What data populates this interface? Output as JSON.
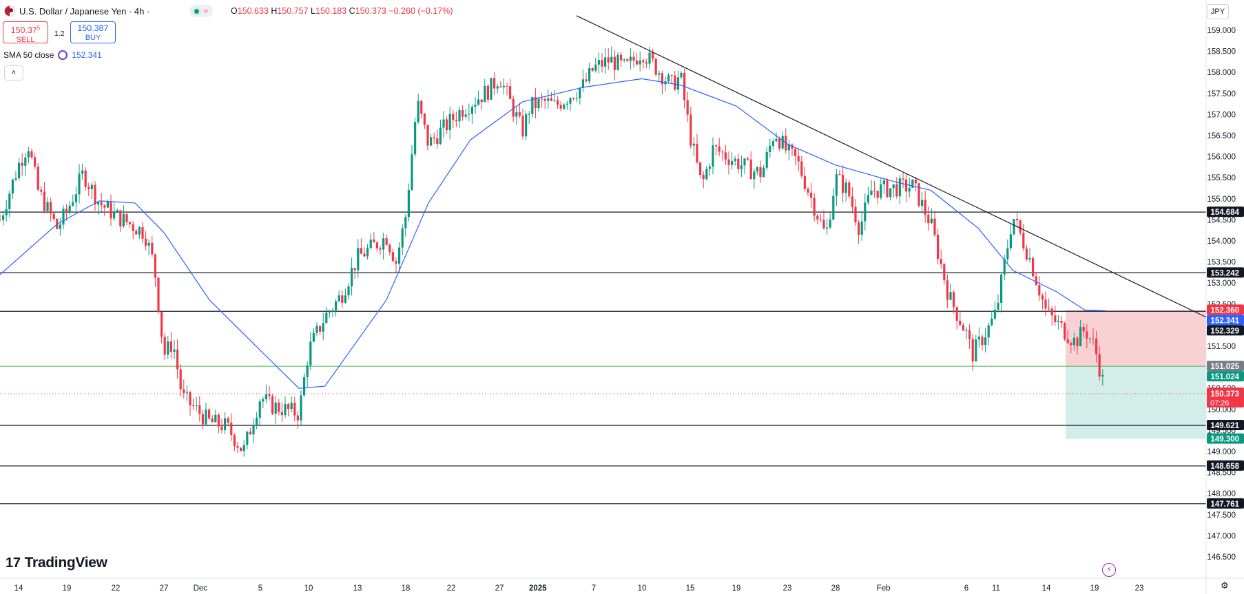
{
  "header": {
    "symbol_title": "U.S. Dollar / Japanese Yen · 4h ·",
    "market_status_icon": "green-dot-icon",
    "wave_icon": "≈",
    "ohlc": {
      "o_label": "O",
      "o": "150.633",
      "h_label": "H",
      "h": "150.757",
      "l_label": "L",
      "l": "150.183",
      "c_label": "C",
      "c": "150.373",
      "change": "−0.260 (−0.17%)"
    }
  },
  "trade": {
    "sell_price": "150.37",
    "sell_price_sup": "5",
    "sell_label": "SELL",
    "spread": "1.2",
    "buy_price": "150.387",
    "buy_label": "BUY"
  },
  "indicator": {
    "label": "SMA 50 close",
    "value": "152.341"
  },
  "collapse_icon": "˄",
  "branding": {
    "logo_text": "TradingView",
    "logo_mark": "17"
  },
  "axis": {
    "currency": "JPY",
    "price_ticks": [
      "159.000",
      "158.500",
      "158.000",
      "157.500",
      "157.000",
      "156.500",
      "156.000",
      "155.500",
      "155.000",
      "154.500",
      "154.000",
      "153.500",
      "153.000",
      "152.500",
      "152.000",
      "151.500",
      "151.000",
      "150.500",
      "150.000",
      "149.500",
      "149.000",
      "148.500",
      "148.000",
      "147.500",
      "147.000",
      "146.500"
    ],
    "time_ticks": [
      "14",
      "19",
      "22",
      "27",
      "Dec",
      "5",
      "10",
      "13",
      "18",
      "22",
      "27",
      "2025",
      "7",
      "10",
      "15",
      "19",
      "23",
      "28",
      "Feb",
      "6",
      "11",
      "14",
      "19",
      "23"
    ]
  },
  "labels": {
    "l154684": "154.684",
    "l153242": "153.242",
    "l152360": "152.360",
    "l152341": "152.341",
    "l152329": "152.329",
    "l151025": "151.025",
    "l151024": "151.024",
    "l150373": "150.373",
    "countdown": "07:26",
    "l149621": "149.621",
    "l149300": "149.300",
    "l148658": "148.658",
    "l147761": "147.761"
  },
  "colors": {
    "up": "#089981",
    "down": "#f23645",
    "sma": "#2962ff",
    "stop_zone": "#f7c9ce",
    "target_zone": "#cbeae4",
    "entry_line": "#4caf50"
  },
  "chart_data": {
    "type": "candlestick",
    "title": "U.S. Dollar / Japanese Yen · 4h ·",
    "xlabel": "",
    "ylabel": "JPY",
    "ylim": [
      146.2,
      159.3
    ],
    "horizontal_levels": [
      154.684,
      153.242,
      152.329,
      151.024,
      149.621,
      148.658,
      147.761
    ],
    "price_labels": [
      152.36,
      152.341,
      151.025,
      150.373,
      149.3
    ],
    "last_price": 150.373,
    "trendline": {
      "from": {
        "date": "Jan 7",
        "price": 159.15
      },
      "to": {
        "date": "Feb 23",
        "price": 152.95
      }
    },
    "sma50_path": [
      {
        "date": "Nov 13",
        "value": 153.2
      },
      {
        "date": "Nov 18",
        "value": 154.4
      },
      {
        "date": "Nov 21",
        "value": 154.95
      },
      {
        "date": "Nov 24",
        "value": 154.9
      },
      {
        "date": "Nov 27",
        "value": 154.2
      },
      {
        "date": "Dec 2",
        "value": 152.6
      },
      {
        "date": "Dec 5",
        "value": 151.4
      },
      {
        "date": "Dec 9",
        "value": 150.5
      },
      {
        "date": "Dec 11",
        "value": 150.55
      },
      {
        "date": "Dec 16",
        "value": 152.6
      },
      {
        "date": "Dec 20",
        "value": 154.9
      },
      {
        "date": "Dec 24",
        "value": 156.4
      },
      {
        "date": "Dec 30",
        "value": 157.3
      },
      {
        "date": "Jan 6",
        "value": 157.65
      },
      {
        "date": "Jan 10",
        "value": 157.85
      },
      {
        "date": "Jan 14",
        "value": 157.7
      },
      {
        "date": "Jan 19",
        "value": 157.2
      },
      {
        "date": "Jan 23",
        "value": 156.3
      },
      {
        "date": "Jan 28",
        "value": 155.8
      },
      {
        "date": "Feb 2",
        "value": 155.4
      },
      {
        "date": "Feb 4",
        "value": 155.2
      },
      {
        "date": "Feb 8",
        "value": 154.3
      },
      {
        "date": "Feb 12",
        "value": 153.3
      },
      {
        "date": "Feb 15",
        "value": 152.8
      },
      {
        "date": "Feb 18",
        "value": 152.36
      },
      {
        "date": "Feb 20",
        "value": 152.341
      }
    ],
    "price_path": [
      {
        "date": "Nov 13",
        "close": 154.5
      },
      {
        "date": "Nov 14",
        "close": 155.8
      },
      {
        "date": "Nov 15",
        "close": 156.3
      },
      {
        "date": "Nov 16",
        "close": 155.2
      },
      {
        "date": "Nov 18",
        "close": 154.3
      },
      {
        "date": "Nov 19",
        "close": 154.7
      },
      {
        "date": "Nov 20",
        "close": 155.6
      },
      {
        "date": "Nov 21",
        "close": 154.9
      },
      {
        "date": "Nov 22",
        "close": 154.6
      },
      {
        "date": "Nov 25",
        "close": 154.2
      },
      {
        "date": "Nov 26",
        "close": 153.4
      },
      {
        "date": "Nov 27",
        "close": 151.3
      },
      {
        "date": "Nov 28",
        "close": 151.6
      },
      {
        "date": "Nov 29",
        "close": 150.3
      },
      {
        "date": "Dec 2",
        "close": 149.7
      },
      {
        "date": "Dec 3",
        "close": 149.6
      },
      {
        "date": "Dec 4",
        "close": 149.0
      },
      {
        "date": "Dec 5",
        "close": 150.3
      },
      {
        "date": "Dec 6",
        "close": 150.1
      },
      {
        "date": "Dec 9",
        "close": 149.9
      },
      {
        "date": "Dec 10",
        "close": 151.4
      },
      {
        "date": "Dec 11",
        "close": 152.2
      },
      {
        "date": "Dec 12",
        "close": 152.7
      },
      {
        "date": "Dec 13",
        "close": 153.6
      },
      {
        "date": "Dec 16",
        "close": 154.1
      },
      {
        "date": "Dec 17",
        "close": 153.5
      },
      {
        "date": "Dec 18",
        "close": 154.6
      },
      {
        "date": "Dec 19",
        "close": 157.3
      },
      {
        "date": "Dec 20",
        "close": 156.3
      },
      {
        "date": "Dec 23",
        "close": 157.1
      },
      {
        "date": "Dec 26",
        "close": 157.6
      },
      {
        "date": "Dec 27",
        "close": 157.9
      },
      {
        "date": "Dec 30",
        "close": 156.6
      },
      {
        "date": "Dec 31",
        "close": 157.2
      },
      {
        "date": "Jan 2",
        "close": 157.3
      },
      {
        "date": "Jan 3",
        "close": 157.2
      },
      {
        "date": "Jan 6",
        "close": 157.7
      },
      {
        "date": "Jan 7",
        "close": 158.1
      },
      {
        "date": "Jan 8",
        "close": 158.3
      },
      {
        "date": "Jan 9",
        "close": 158.1
      },
      {
        "date": "Jan 10",
        "close": 158.5
      },
      {
        "date": "Jan 13",
        "close": 157.7
      },
      {
        "date": "Jan 14",
        "close": 157.9
      },
      {
        "date": "Jan 15",
        "close": 156.5
      },
      {
        "date": "Jan 16",
        "close": 155.3
      },
      {
        "date": "Jan 17",
        "close": 156.2
      },
      {
        "date": "Jan 20",
        "close": 155.7
      },
      {
        "date": "Jan 21",
        "close": 155.6
      },
      {
        "date": "Jan 22",
        "close": 156.6
      },
      {
        "date": "Jan 23",
        "close": 156.1
      },
      {
        "date": "Jan 24",
        "close": 155.9
      },
      {
        "date": "Jan 27",
        "close": 154.1
      },
      {
        "date": "Jan 28",
        "close": 155.5
      },
      {
        "date": "Jan 29",
        "close": 155.2
      },
      {
        "date": "Jan 30",
        "close": 154.3
      },
      {
        "date": "Jan 31",
        "close": 155.2
      },
      {
        "date": "Feb 3",
        "close": 155.3
      },
      {
        "date": "Feb 4",
        "close": 154.4
      },
      {
        "date": "Feb 5",
        "close": 152.7
      },
      {
        "date": "Feb 6",
        "close": 151.8
      },
      {
        "date": "Feb 7",
        "close": 151.3
      },
      {
        "date": "Feb 10",
        "close": 152.0
      },
      {
        "date": "Feb 11",
        "close": 152.3
      },
      {
        "date": "Feb 12",
        "close": 154.6
      },
      {
        "date": "Feb 13",
        "close": 153.6
      },
      {
        "date": "Feb 14",
        "close": 152.3
      },
      {
        "date": "Feb 17",
        "close": 151.6
      },
      {
        "date": "Feb 18",
        "close": 151.9
      },
      {
        "date": "Feb 19",
        "close": 151.5
      },
      {
        "date": "Feb 20",
        "close": 150.373
      }
    ],
    "position_zones": [
      {
        "name": "stop",
        "from": 151.025,
        "to": 152.36,
        "color": "#f7c9ce"
      },
      {
        "name": "target",
        "from": 149.3,
        "to": 151.025,
        "color": "#cbeae4"
      }
    ],
    "grid": false
  }
}
